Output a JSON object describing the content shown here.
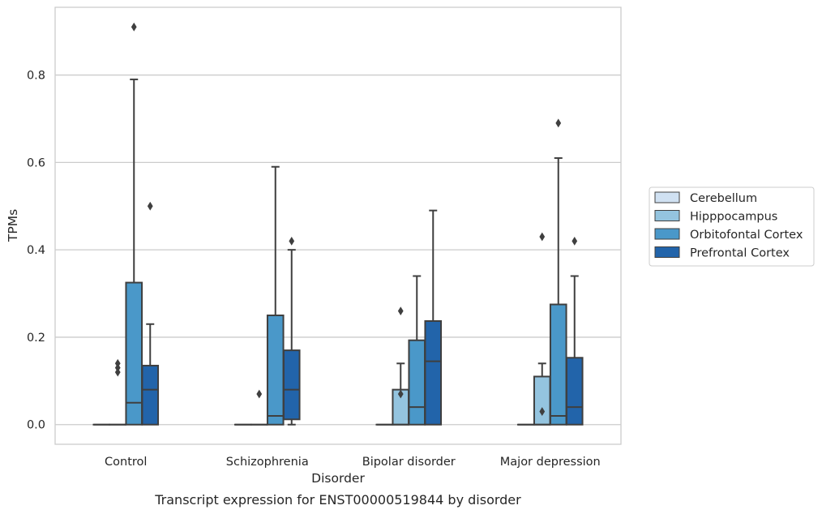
{
  "chart_data": {
    "type": "box",
    "xlabel": "Disorder",
    "ylabel": "TPMs",
    "caption": "Transcript expression for ENST00000519844 by disorder",
    "ylim": [
      -0.045,
      0.955
    ],
    "yticks": [
      0.0,
      0.2,
      0.4,
      0.6,
      0.8
    ],
    "ytick_labels": [
      "0.0",
      "0.2",
      "0.4",
      "0.6",
      "0.8"
    ],
    "grid": "horizontal",
    "legend_position": "right",
    "categories": [
      "Control",
      "Schizophrenia",
      "Bipolar disorder",
      "Major depression"
    ],
    "series": [
      {
        "name": "Cerebellum",
        "color": "#d0e1f2",
        "boxes": [
          {
            "q1": 0,
            "median": 0,
            "q3": 0,
            "whislo": 0,
            "whishi": 0,
            "fliers": []
          },
          {
            "q1": 0,
            "median": 0,
            "q3": 0,
            "whislo": 0,
            "whishi": 0,
            "fliers": []
          },
          {
            "q1": 0,
            "median": 0,
            "q3": 0,
            "whislo": 0,
            "whishi": 0,
            "fliers": []
          },
          {
            "q1": 0,
            "median": 0,
            "q3": 0,
            "whislo": 0,
            "whishi": 0,
            "fliers": []
          }
        ]
      },
      {
        "name": "Hipppocampus",
        "color": "#94c4df",
        "boxes": [
          {
            "q1": 0,
            "median": 0,
            "q3": 0,
            "whislo": 0,
            "whishi": 0,
            "fliers": [
              0.12,
              0.13,
              0.14
            ]
          },
          {
            "q1": 0,
            "median": 0,
            "q3": 0,
            "whislo": 0,
            "whishi": 0,
            "fliers": [
              0.07
            ]
          },
          {
            "q1": 0,
            "median": 0,
            "q3": 0.08,
            "whislo": 0,
            "whishi": 0.14,
            "fliers": [
              0.07,
              0.26
            ]
          },
          {
            "q1": 0,
            "median": 0,
            "q3": 0.11,
            "whislo": 0,
            "whishi": 0.14,
            "fliers": [
              0.03,
              0.43
            ]
          }
        ]
      },
      {
        "name": "Orbitofontal Cortex",
        "color": "#4a98c9",
        "boxes": [
          {
            "q1": 0,
            "median": 0.05,
            "q3": 0.325,
            "whislo": 0,
            "whishi": 0.79,
            "fliers": [
              0.91
            ]
          },
          {
            "q1": 0,
            "median": 0.02,
            "q3": 0.25,
            "whislo": 0,
            "whishi": 0.59,
            "fliers": []
          },
          {
            "q1": 0,
            "median": 0.04,
            "q3": 0.193,
            "whislo": 0,
            "whishi": 0.34,
            "fliers": []
          },
          {
            "q1": 0,
            "median": 0.02,
            "q3": 0.275,
            "whislo": 0,
            "whishi": 0.61,
            "fliers": [
              0.69
            ]
          }
        ]
      },
      {
        "name": "Prefrontal Cortex",
        "color": "#2264aa",
        "boxes": [
          {
            "q1": 0,
            "median": 0.08,
            "q3": 0.135,
            "whislo": 0,
            "whishi": 0.23,
            "fliers": [
              0.5
            ]
          },
          {
            "q1": 0.012,
            "median": 0.08,
            "q3": 0.17,
            "whislo": 0,
            "whishi": 0.4,
            "fliers": [
              0.42
            ]
          },
          {
            "q1": 0,
            "median": 0.145,
            "q3": 0.237,
            "whislo": 0,
            "whishi": 0.49,
            "fliers": []
          },
          {
            "q1": 0,
            "median": 0.04,
            "q3": 0.153,
            "whislo": 0,
            "whishi": 0.34,
            "fliers": [
              0.42
            ]
          }
        ]
      }
    ]
  },
  "style": {
    "box_edge_color": "#3f3f3f",
    "grid_color": "#cccccc",
    "frame_color": "#cccccc",
    "text_color": "#262626"
  }
}
